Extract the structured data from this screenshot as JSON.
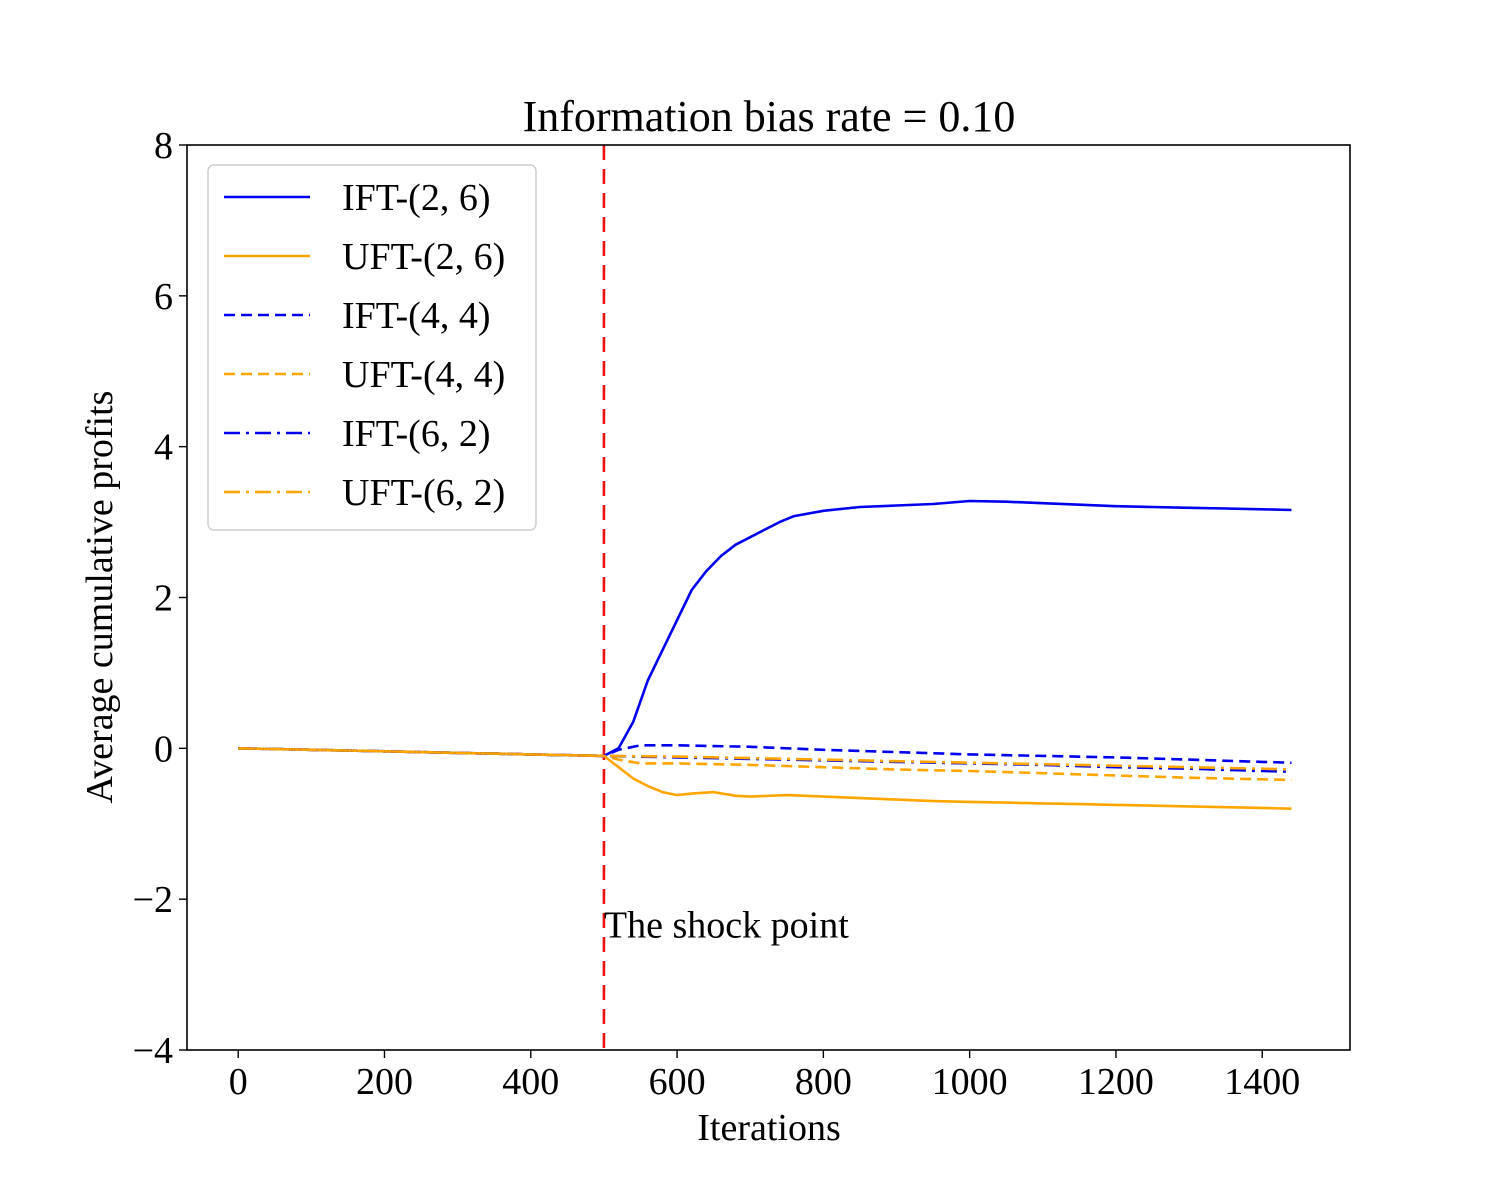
{
  "chart_data": {
    "type": "line",
    "title": "Information bias rate = 0.10",
    "xlabel": "Iterations",
    "ylabel": "Average cumulative profits",
    "xlim": [
      -70,
      1520
    ],
    "ylim": [
      -4,
      8
    ],
    "xticks": [
      0,
      200,
      400,
      600,
      800,
      1000,
      1200,
      1400
    ],
    "yticks": [
      -4,
      -2,
      0,
      2,
      4,
      6,
      8
    ],
    "xtick_labels": [
      "0",
      "200",
      "400",
      "600",
      "800",
      "1000",
      "1200",
      "1400"
    ],
    "ytick_labels": [
      "−4",
      "−2",
      "0",
      "2",
      "4",
      "6",
      "8"
    ],
    "grid": false,
    "legend_position": "upper-left",
    "annotation": {
      "text": "The shock point",
      "x": 500,
      "y": -2.35,
      "line_x": 500,
      "line_color": "#ee1111",
      "line_style": "dashed"
    },
    "series": [
      {
        "name": "IFT-(2, 6)",
        "color": "#0000ee",
        "style": "solid",
        "points": [
          [
            0,
            0
          ],
          [
            100,
            -0.02
          ],
          [
            200,
            -0.04
          ],
          [
            300,
            -0.06
          ],
          [
            400,
            -0.08
          ],
          [
            500,
            -0.1
          ],
          [
            520,
            0.0
          ],
          [
            540,
            0.35
          ],
          [
            560,
            0.9
          ],
          [
            580,
            1.3
          ],
          [
            600,
            1.7
          ],
          [
            620,
            2.1
          ],
          [
            640,
            2.35
          ],
          [
            660,
            2.55
          ],
          [
            680,
            2.7
          ],
          [
            700,
            2.8
          ],
          [
            720,
            2.9
          ],
          [
            740,
            3.0
          ],
          [
            760,
            3.08
          ],
          [
            800,
            3.15
          ],
          [
            850,
            3.2
          ],
          [
            900,
            3.22
          ],
          [
            950,
            3.24
          ],
          [
            1000,
            3.28
          ],
          [
            1050,
            3.27
          ],
          [
            1100,
            3.25
          ],
          [
            1150,
            3.23
          ],
          [
            1200,
            3.21
          ],
          [
            1250,
            3.2
          ],
          [
            1300,
            3.19
          ],
          [
            1350,
            3.18
          ],
          [
            1400,
            3.17
          ],
          [
            1440,
            3.16
          ]
        ]
      },
      {
        "name": "UFT-(2, 6)",
        "color": "#ffa500",
        "style": "solid",
        "points": [
          [
            0,
            0
          ],
          [
            100,
            -0.02
          ],
          [
            200,
            -0.04
          ],
          [
            300,
            -0.06
          ],
          [
            400,
            -0.08
          ],
          [
            500,
            -0.1
          ],
          [
            520,
            -0.25
          ],
          [
            540,
            -0.4
          ],
          [
            560,
            -0.5
          ],
          [
            580,
            -0.58
          ],
          [
            600,
            -0.62
          ],
          [
            620,
            -0.6
          ],
          [
            650,
            -0.58
          ],
          [
            680,
            -0.63
          ],
          [
            700,
            -0.64
          ],
          [
            750,
            -0.62
          ],
          [
            800,
            -0.64
          ],
          [
            850,
            -0.66
          ],
          [
            900,
            -0.68
          ],
          [
            950,
            -0.7
          ],
          [
            1000,
            -0.71
          ],
          [
            1050,
            -0.72
          ],
          [
            1100,
            -0.73
          ],
          [
            1150,
            -0.74
          ],
          [
            1200,
            -0.75
          ],
          [
            1300,
            -0.77
          ],
          [
            1400,
            -0.79
          ],
          [
            1440,
            -0.8
          ]
        ]
      },
      {
        "name": "IFT-(4, 4)",
        "color": "#0000ee",
        "style": "dashed",
        "points": [
          [
            0,
            0
          ],
          [
            100,
            -0.02
          ],
          [
            200,
            -0.04
          ],
          [
            300,
            -0.06
          ],
          [
            400,
            -0.08
          ],
          [
            500,
            -0.1
          ],
          [
            520,
            -0.02
          ],
          [
            550,
            0.04
          ],
          [
            600,
            0.04
          ],
          [
            700,
            0.02
          ],
          [
            800,
            -0.02
          ],
          [
            900,
            -0.05
          ],
          [
            1000,
            -0.08
          ],
          [
            1100,
            -0.1
          ],
          [
            1200,
            -0.12
          ],
          [
            1300,
            -0.15
          ],
          [
            1400,
            -0.18
          ],
          [
            1440,
            -0.19
          ]
        ]
      },
      {
        "name": "UFT-(4, 4)",
        "color": "#ffa500",
        "style": "dashed",
        "points": [
          [
            0,
            0
          ],
          [
            100,
            -0.02
          ],
          [
            200,
            -0.04
          ],
          [
            300,
            -0.06
          ],
          [
            400,
            -0.08
          ],
          [
            500,
            -0.1
          ],
          [
            520,
            -0.15
          ],
          [
            550,
            -0.2
          ],
          [
            600,
            -0.2
          ],
          [
            700,
            -0.22
          ],
          [
            800,
            -0.25
          ],
          [
            900,
            -0.28
          ],
          [
            1000,
            -0.3
          ],
          [
            1100,
            -0.33
          ],
          [
            1200,
            -0.36
          ],
          [
            1300,
            -0.39
          ],
          [
            1400,
            -0.41
          ],
          [
            1440,
            -0.42
          ]
        ]
      },
      {
        "name": "IFT-(6, 2)",
        "color": "#0000ee",
        "style": "dashdot",
        "points": [
          [
            0,
            0
          ],
          [
            100,
            -0.02
          ],
          [
            200,
            -0.04
          ],
          [
            300,
            -0.06
          ],
          [
            400,
            -0.08
          ],
          [
            500,
            -0.1
          ],
          [
            600,
            -0.12
          ],
          [
            700,
            -0.14
          ],
          [
            800,
            -0.16
          ],
          [
            900,
            -0.18
          ],
          [
            1000,
            -0.2
          ],
          [
            1100,
            -0.22
          ],
          [
            1200,
            -0.25
          ],
          [
            1300,
            -0.27
          ],
          [
            1400,
            -0.3
          ],
          [
            1440,
            -0.31
          ]
        ]
      },
      {
        "name": "UFT-(6, 2)",
        "color": "#ffa500",
        "style": "dashdot",
        "points": [
          [
            0,
            0
          ],
          [
            100,
            -0.02
          ],
          [
            200,
            -0.04
          ],
          [
            300,
            -0.06
          ],
          [
            400,
            -0.08
          ],
          [
            500,
            -0.1
          ],
          [
            600,
            -0.11
          ],
          [
            700,
            -0.13
          ],
          [
            800,
            -0.15
          ],
          [
            900,
            -0.17
          ],
          [
            1000,
            -0.19
          ],
          [
            1100,
            -0.21
          ],
          [
            1200,
            -0.23
          ],
          [
            1300,
            -0.25
          ],
          [
            1400,
            -0.27
          ],
          [
            1440,
            -0.28
          ]
        ]
      }
    ]
  }
}
